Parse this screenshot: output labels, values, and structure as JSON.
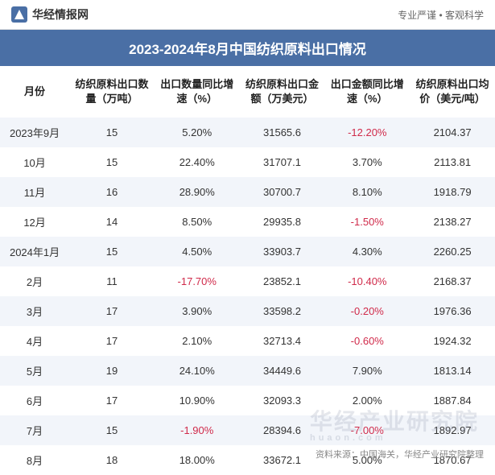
{
  "header": {
    "site_name": "华经情报网",
    "tagline": "专业严谨 • 客观科学"
  },
  "title": "2023-2024年8月中国纺织原料出口情况",
  "table": {
    "columns": [
      "月份",
      "纺织原料出口数量（万吨）",
      "出口数量同比增速（%）",
      "纺织原料出口金额（万美元）",
      "出口金额同比增速（%）",
      "纺织原料出口均价（美元/吨）"
    ],
    "rows": [
      {
        "month": "2023年9月",
        "qty": "15",
        "qty_yoy": "5.20%",
        "qty_yoy_neg": false,
        "amt": "31565.6",
        "amt_yoy": "-12.20%",
        "amt_yoy_neg": true,
        "price": "2104.37"
      },
      {
        "month": "10月",
        "qty": "15",
        "qty_yoy": "22.40%",
        "qty_yoy_neg": false,
        "amt": "31707.1",
        "amt_yoy": "3.70%",
        "amt_yoy_neg": false,
        "price": "2113.81"
      },
      {
        "month": "11月",
        "qty": "16",
        "qty_yoy": "28.90%",
        "qty_yoy_neg": false,
        "amt": "30700.7",
        "amt_yoy": "8.10%",
        "amt_yoy_neg": false,
        "price": "1918.79"
      },
      {
        "month": "12月",
        "qty": "14",
        "qty_yoy": "8.50%",
        "qty_yoy_neg": false,
        "amt": "29935.8",
        "amt_yoy": "-1.50%",
        "amt_yoy_neg": true,
        "price": "2138.27"
      },
      {
        "month": "2024年1月",
        "qty": "15",
        "qty_yoy": "4.50%",
        "qty_yoy_neg": false,
        "amt": "33903.7",
        "amt_yoy": "4.30%",
        "amt_yoy_neg": false,
        "price": "2260.25"
      },
      {
        "month": "2月",
        "qty": "11",
        "qty_yoy": "-17.70%",
        "qty_yoy_neg": true,
        "amt": "23852.1",
        "amt_yoy": "-10.40%",
        "amt_yoy_neg": true,
        "price": "2168.37"
      },
      {
        "month": "3月",
        "qty": "17",
        "qty_yoy": "3.90%",
        "qty_yoy_neg": false,
        "amt": "33598.2",
        "amt_yoy": "-0.20%",
        "amt_yoy_neg": true,
        "price": "1976.36"
      },
      {
        "month": "4月",
        "qty": "17",
        "qty_yoy": "2.10%",
        "qty_yoy_neg": false,
        "amt": "32713.4",
        "amt_yoy": "-0.60%",
        "amt_yoy_neg": true,
        "price": "1924.32"
      },
      {
        "month": "5月",
        "qty": "19",
        "qty_yoy": "24.10%",
        "qty_yoy_neg": false,
        "amt": "34449.6",
        "amt_yoy": "7.90%",
        "amt_yoy_neg": false,
        "price": "1813.14"
      },
      {
        "month": "6月",
        "qty": "17",
        "qty_yoy": "10.90%",
        "qty_yoy_neg": false,
        "amt": "32093.3",
        "amt_yoy": "2.00%",
        "amt_yoy_neg": false,
        "price": "1887.84"
      },
      {
        "month": "7月",
        "qty": "15",
        "qty_yoy": "-1.90%",
        "qty_yoy_neg": true,
        "amt": "28394.6",
        "amt_yoy": "-7.00%",
        "amt_yoy_neg": true,
        "price": "1892.97"
      },
      {
        "month": "8月",
        "qty": "18",
        "qty_yoy": "18.00%",
        "qty_yoy_neg": false,
        "amt": "33672.1",
        "amt_yoy": "5.00%",
        "amt_yoy_neg": false,
        "price": "1870.67"
      }
    ],
    "alt_row_bg": "#f2f5fa",
    "neg_color": "#d02a4a",
    "text_color": "#333333",
    "header_bg": "#4a6fa5"
  },
  "footer": {
    "source": "资料来源：中国海关，华经产业研究院整理"
  },
  "watermark": {
    "main": "华经产业研究院",
    "sub": "huaon.com"
  }
}
